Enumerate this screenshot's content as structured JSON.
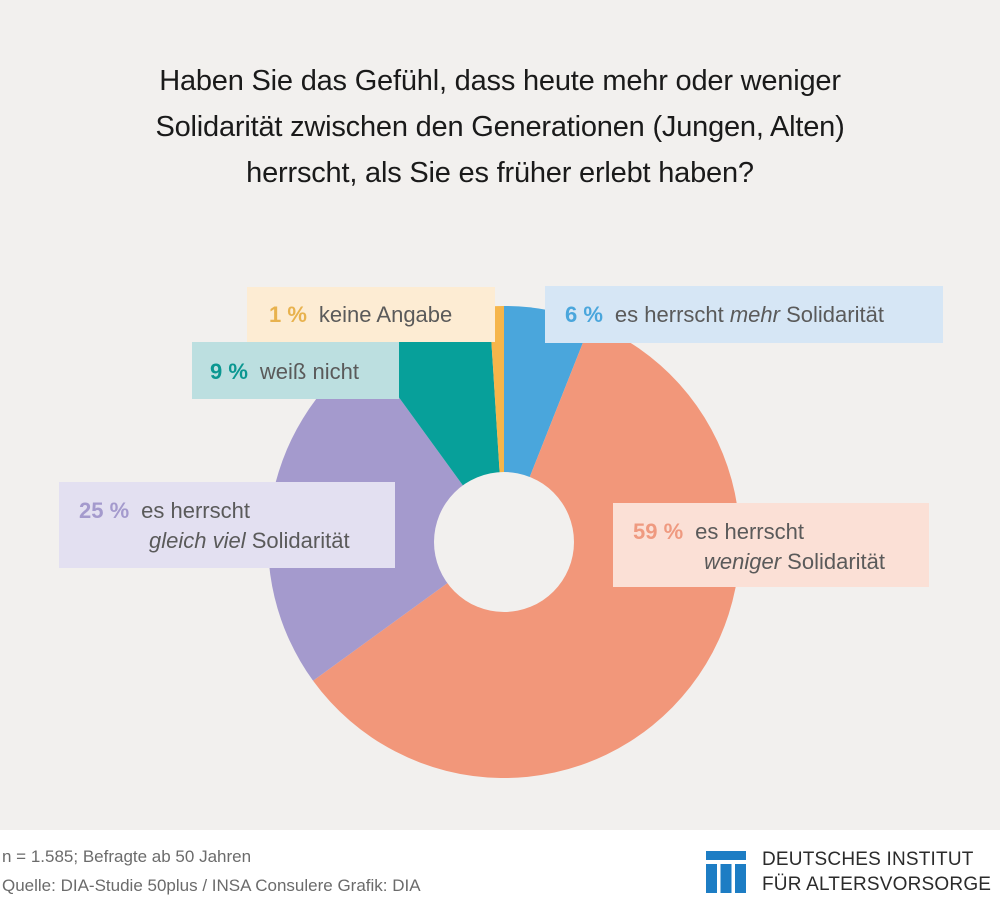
{
  "title_lines": [
    "Haben Sie das Gefühl, dass heute mehr oder weniger",
    "Solidarität zwischen den Generationen (Jungen, Alten)",
    "herrscht, als Sie es früher erlebt haben?"
  ],
  "chart_data": {
    "type": "pie",
    "donut": true,
    "title": "Haben Sie das Gefühl, dass heute mehr oder weniger Solidarität zwischen den Generationen (Jungen, Alten) herrscht, als Sie es früher erlebt haben?",
    "unit": "%",
    "start": "12 o'clock, clockwise",
    "slices": [
      {
        "key": "mehr",
        "value": 6,
        "pct_label": "6 %",
        "text_pre": "es herrscht ",
        "text_em": "mehr",
        "text_post": " Solidarität",
        "color": "#4aa6dc",
        "label_bg": "#d6e6f5",
        "pct_color": "#4aa6dc"
      },
      {
        "key": "weniger",
        "value": 59,
        "pct_label": "59 %",
        "line1": "es herrscht",
        "text_em": "weniger",
        "text_post": " Solidarität",
        "color": "#f2977a",
        "label_bg": "#fbe0d6",
        "pct_color": "#ef9a80"
      },
      {
        "key": "gleich",
        "value": 25,
        "pct_label": "25 %",
        "line1": "es herrscht",
        "text_em": "gleich viel",
        "text_post": " Solidarität",
        "color": "#a49acd",
        "label_bg": "#e3e0f1",
        "pct_color": "#a49acd"
      },
      {
        "key": "weissnicht",
        "value": 9,
        "pct_label": "9 %",
        "text": "weiß nicht",
        "color": "#07a09a",
        "label_bg": "#bcdfe0",
        "pct_color": "#0b9791"
      },
      {
        "key": "keineangabe",
        "value": 1,
        "pct_label": "1 %",
        "text": "keine Angabe",
        "color": "#f6b54a",
        "label_bg": "#fdecd3",
        "pct_color": "#e8b24e"
      }
    ]
  },
  "footer": {
    "sample": "n = 1.585; Befragte ab 50 Jahren",
    "source": "Quelle: DIA-Studie 50plus / INSA Consulere  Grafik: DIA",
    "logo_line1": "DEUTSCHES INSTITUT",
    "logo_line2": "FÜR ALTERSVORSORGE",
    "logo_color": "#1d7dc4",
    "logo_icon": "dia-logo-icon"
  }
}
